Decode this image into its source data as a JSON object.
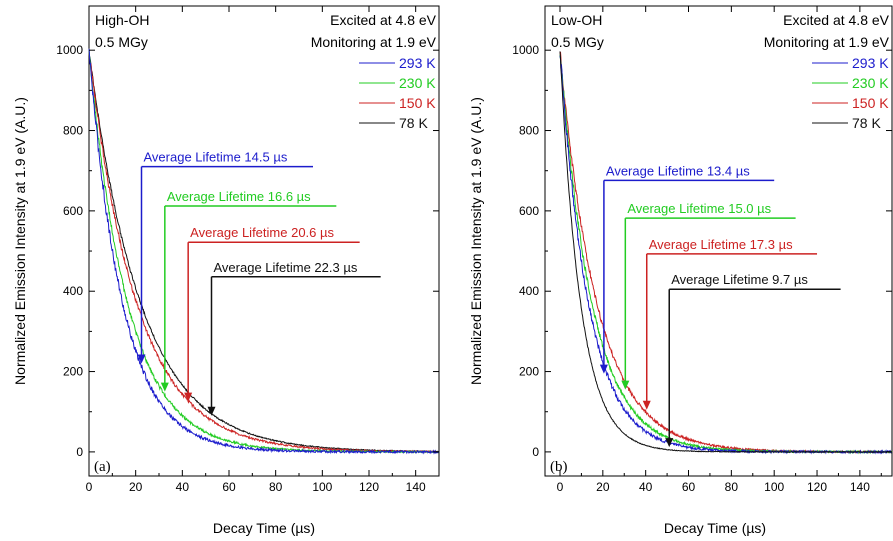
{
  "chart_data": [
    {
      "type": "line",
      "panel_label": "(a)",
      "sample": "High-OH",
      "dose": "0.5 MGy",
      "excitation": "Excited at 4.8 eV",
      "monitoring": "Monitoring at 1.9 eV",
      "xlabel": "Decay Time (µs)",
      "ylabel": "Normalized Emission Intensity at 1.9 eV (A.U.)",
      "xlim": [
        0,
        150
      ],
      "ylim": [
        -60,
        1110
      ],
      "xticks": [
        0,
        20,
        40,
        60,
        80,
        100,
        120,
        140
      ],
      "yticks": [
        0,
        200,
        400,
        600,
        800,
        1000
      ],
      "grid": false,
      "legend_position": "top-right",
      "series": [
        {
          "name": "293 K",
          "color": "#1c1ccc",
          "tau": 14.5,
          "noise": 14
        },
        {
          "name": "230 K",
          "color": "#22cc22",
          "tau": 16.6,
          "noise": 10
        },
        {
          "name": "150 K",
          "color": "#cc2222",
          "tau": 20.6,
          "noise": 9
        },
        {
          "name": "78 K",
          "color": "#111111",
          "tau": 22.3,
          "noise": 5
        }
      ],
      "annotations": [
        {
          "text": "Average Lifetime 14.5 µs",
          "x": 22.5,
          "y": 220,
          "color": "#1c1ccc",
          "text_x": 23,
          "text_y": 710,
          "line_end_x": 96
        },
        {
          "text": "Average Lifetime 16.6 µs",
          "x": 32.5,
          "y": 150,
          "color": "#22cc22",
          "text_x": 33,
          "text_y": 612,
          "line_end_x": 106
        },
        {
          "text": "Average Lifetime 20.6 µs",
          "x": 42.5,
          "y": 125,
          "color": "#cc2222",
          "text_x": 43,
          "text_y": 522,
          "line_end_x": 116
        },
        {
          "text": "Average Lifetime 22.3 µs",
          "x": 52.5,
          "y": 90,
          "color": "#111111",
          "text_x": 53,
          "text_y": 436,
          "line_end_x": 125
        }
      ]
    },
    {
      "type": "line",
      "panel_label": "(b)",
      "sample": "Low-OH",
      "dose": "0.5 MGy",
      "excitation": "Excited at 4.8 eV",
      "monitoring": "Monitoring at 1.9 eV",
      "xlabel": "Decay Time (µs)",
      "ylabel": "Normalized Emission Intensity at 1.9 eV (A.U.)",
      "xlim": [
        -7,
        155
      ],
      "ylim": [
        -60,
        1110
      ],
      "xticks": [
        0,
        20,
        40,
        60,
        80,
        100,
        120,
        140
      ],
      "yticks": [
        0,
        200,
        400,
        600,
        800,
        1000
      ],
      "grid": false,
      "legend_position": "top-right",
      "series": [
        {
          "name": "293 K",
          "color": "#1c1ccc",
          "tau": 13.4,
          "noise": 14
        },
        {
          "name": "230 K",
          "color": "#22cc22",
          "tau": 15.0,
          "noise": 12
        },
        {
          "name": "150 K",
          "color": "#cc2222",
          "tau": 17.3,
          "noise": 10
        },
        {
          "name": "78 K",
          "color": "#111111",
          "tau": 9.7,
          "noise": 4
        }
      ],
      "annotations": [
        {
          "text": "Average Lifetime 13.4 µs",
          "x": 20.5,
          "y": 195,
          "color": "#1c1ccc",
          "text_x": 21,
          "text_y": 676,
          "line_end_x": 100
        },
        {
          "text": "Average Lifetime 15.0 µs",
          "x": 30.5,
          "y": 155,
          "color": "#22cc22",
          "text_x": 31,
          "text_y": 582,
          "line_end_x": 110
        },
        {
          "text": "Average Lifetime 17.3 µs",
          "x": 40.5,
          "y": 105,
          "color": "#cc2222",
          "text_x": 41,
          "text_y": 493,
          "line_end_x": 120
        },
        {
          "text": "Average Lifetime 9.7 µs",
          "x": 51,
          "y": 12,
          "color": "#111111",
          "text_x": 51.5,
          "text_y": 405,
          "line_end_x": 131
        }
      ]
    }
  ]
}
